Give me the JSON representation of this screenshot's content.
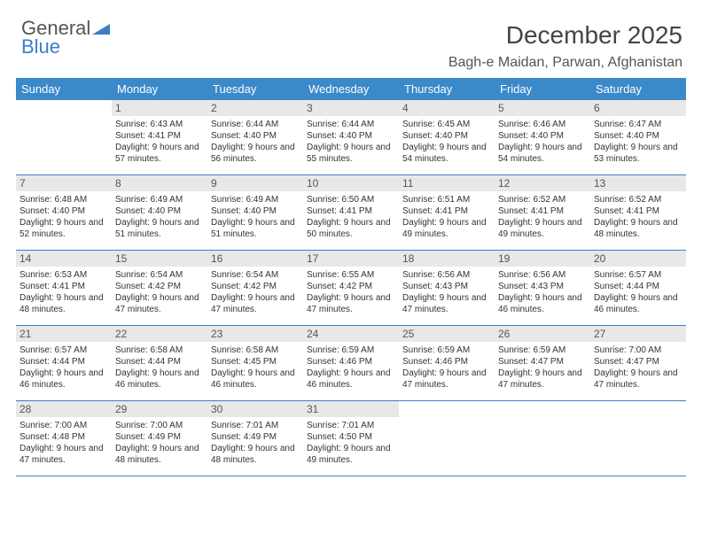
{
  "logo": {
    "part1": "General",
    "part2": "Blue"
  },
  "title": "December 2025",
  "subtitle": "Bagh-e Maidan, Parwan, Afghanistan",
  "colors": {
    "header_bg": "#3a89c9",
    "header_fg": "#ffffff",
    "rule": "#3a7fc4",
    "daynum_bg": "#e8e8e8",
    "text": "#333333"
  },
  "day_names": [
    "Sunday",
    "Monday",
    "Tuesday",
    "Wednesday",
    "Thursday",
    "Friday",
    "Saturday"
  ],
  "first_weekday_offset": 1,
  "days": [
    {
      "n": 1,
      "sunrise": "6:43 AM",
      "sunset": "4:41 PM",
      "dl": "9 hours and 57 minutes."
    },
    {
      "n": 2,
      "sunrise": "6:44 AM",
      "sunset": "4:40 PM",
      "dl": "9 hours and 56 minutes."
    },
    {
      "n": 3,
      "sunrise": "6:44 AM",
      "sunset": "4:40 PM",
      "dl": "9 hours and 55 minutes."
    },
    {
      "n": 4,
      "sunrise": "6:45 AM",
      "sunset": "4:40 PM",
      "dl": "9 hours and 54 minutes."
    },
    {
      "n": 5,
      "sunrise": "6:46 AM",
      "sunset": "4:40 PM",
      "dl": "9 hours and 54 minutes."
    },
    {
      "n": 6,
      "sunrise": "6:47 AM",
      "sunset": "4:40 PM",
      "dl": "9 hours and 53 minutes."
    },
    {
      "n": 7,
      "sunrise": "6:48 AM",
      "sunset": "4:40 PM",
      "dl": "9 hours and 52 minutes."
    },
    {
      "n": 8,
      "sunrise": "6:49 AM",
      "sunset": "4:40 PM",
      "dl": "9 hours and 51 minutes."
    },
    {
      "n": 9,
      "sunrise": "6:49 AM",
      "sunset": "4:40 PM",
      "dl": "9 hours and 51 minutes."
    },
    {
      "n": 10,
      "sunrise": "6:50 AM",
      "sunset": "4:41 PM",
      "dl": "9 hours and 50 minutes."
    },
    {
      "n": 11,
      "sunrise": "6:51 AM",
      "sunset": "4:41 PM",
      "dl": "9 hours and 49 minutes."
    },
    {
      "n": 12,
      "sunrise": "6:52 AM",
      "sunset": "4:41 PM",
      "dl": "9 hours and 49 minutes."
    },
    {
      "n": 13,
      "sunrise": "6:52 AM",
      "sunset": "4:41 PM",
      "dl": "9 hours and 48 minutes."
    },
    {
      "n": 14,
      "sunrise": "6:53 AM",
      "sunset": "4:41 PM",
      "dl": "9 hours and 48 minutes."
    },
    {
      "n": 15,
      "sunrise": "6:54 AM",
      "sunset": "4:42 PM",
      "dl": "9 hours and 47 minutes."
    },
    {
      "n": 16,
      "sunrise": "6:54 AM",
      "sunset": "4:42 PM",
      "dl": "9 hours and 47 minutes."
    },
    {
      "n": 17,
      "sunrise": "6:55 AM",
      "sunset": "4:42 PM",
      "dl": "9 hours and 47 minutes."
    },
    {
      "n": 18,
      "sunrise": "6:56 AM",
      "sunset": "4:43 PM",
      "dl": "9 hours and 47 minutes."
    },
    {
      "n": 19,
      "sunrise": "6:56 AM",
      "sunset": "4:43 PM",
      "dl": "9 hours and 46 minutes."
    },
    {
      "n": 20,
      "sunrise": "6:57 AM",
      "sunset": "4:44 PM",
      "dl": "9 hours and 46 minutes."
    },
    {
      "n": 21,
      "sunrise": "6:57 AM",
      "sunset": "4:44 PM",
      "dl": "9 hours and 46 minutes."
    },
    {
      "n": 22,
      "sunrise": "6:58 AM",
      "sunset": "4:44 PM",
      "dl": "9 hours and 46 minutes."
    },
    {
      "n": 23,
      "sunrise": "6:58 AM",
      "sunset": "4:45 PM",
      "dl": "9 hours and 46 minutes."
    },
    {
      "n": 24,
      "sunrise": "6:59 AM",
      "sunset": "4:46 PM",
      "dl": "9 hours and 46 minutes."
    },
    {
      "n": 25,
      "sunrise": "6:59 AM",
      "sunset": "4:46 PM",
      "dl": "9 hours and 47 minutes."
    },
    {
      "n": 26,
      "sunrise": "6:59 AM",
      "sunset": "4:47 PM",
      "dl": "9 hours and 47 minutes."
    },
    {
      "n": 27,
      "sunrise": "7:00 AM",
      "sunset": "4:47 PM",
      "dl": "9 hours and 47 minutes."
    },
    {
      "n": 28,
      "sunrise": "7:00 AM",
      "sunset": "4:48 PM",
      "dl": "9 hours and 47 minutes."
    },
    {
      "n": 29,
      "sunrise": "7:00 AM",
      "sunset": "4:49 PM",
      "dl": "9 hours and 48 minutes."
    },
    {
      "n": 30,
      "sunrise": "7:01 AM",
      "sunset": "4:49 PM",
      "dl": "9 hours and 48 minutes."
    },
    {
      "n": 31,
      "sunrise": "7:01 AM",
      "sunset": "4:50 PM",
      "dl": "9 hours and 49 minutes."
    }
  ],
  "labels": {
    "sunrise": "Sunrise:",
    "sunset": "Sunset:",
    "daylight": "Daylight:"
  }
}
